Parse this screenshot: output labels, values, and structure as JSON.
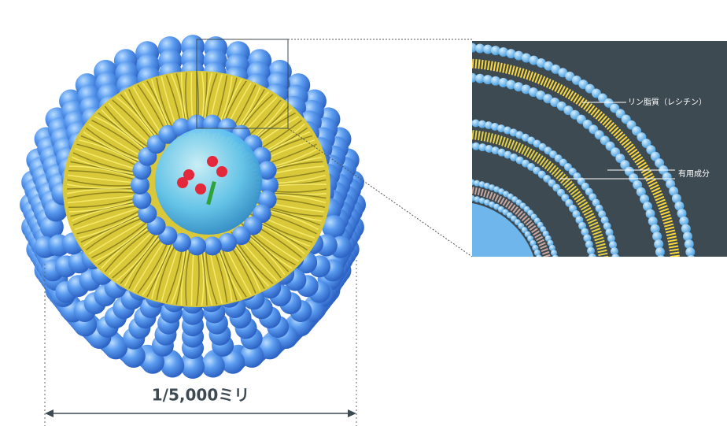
{
  "labels": {
    "phospholipid": "リン脂質（レシチン）",
    "active_ingredient": "有用成分",
    "scale": "1/5,000ミリ"
  }
}
